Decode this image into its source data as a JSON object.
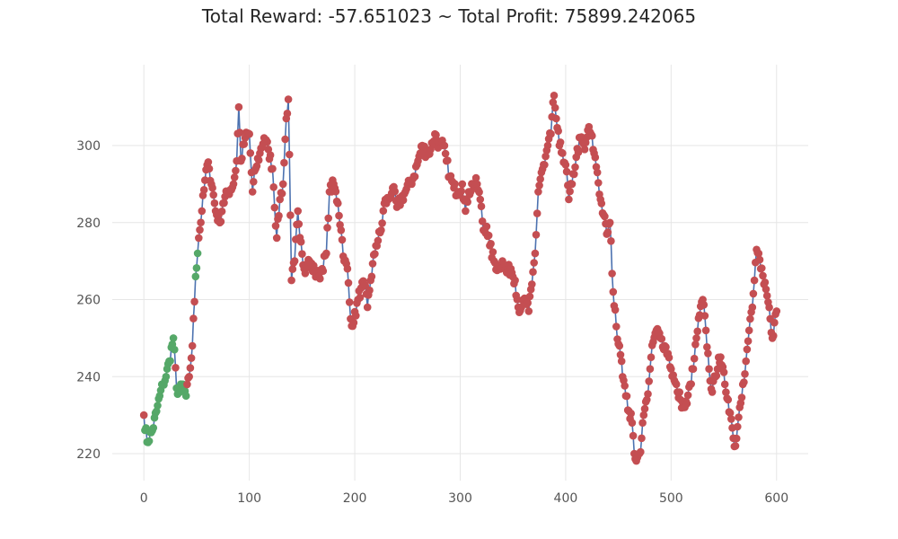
{
  "chart_data": {
    "type": "line",
    "title": "Total Reward: -57.651023 ~ Total Profit: 75899.242065",
    "xlabel": "",
    "ylabel": "",
    "xlim": [
      -30,
      630
    ],
    "ylim": [
      213,
      321
    ],
    "xticks": [
      0,
      100,
      200,
      300,
      400,
      500,
      600
    ],
    "yticks": [
      220,
      240,
      260,
      280,
      300
    ],
    "grid": true,
    "colors": {
      "line": "#4c72b0",
      "short": "#c44e52",
      "long": "#55a868",
      "grid": "#e6e6e6"
    },
    "key_points": [
      [
        0,
        230
      ],
      [
        3,
        223
      ],
      [
        8,
        226
      ],
      [
        12,
        231
      ],
      [
        15,
        235
      ],
      [
        18,
        238
      ],
      [
        21,
        240
      ],
      [
        24,
        244
      ],
      [
        28,
        250
      ],
      [
        31,
        237
      ],
      [
        34,
        236
      ],
      [
        37,
        238
      ],
      [
        40,
        235
      ],
      [
        43,
        240
      ],
      [
        46,
        248
      ],
      [
        49,
        266
      ],
      [
        52,
        276
      ],
      [
        55,
        283
      ],
      [
        58,
        291
      ],
      [
        60,
        295
      ],
      [
        62,
        294
      ],
      [
        65,
        289
      ],
      [
        68,
        283
      ],
      [
        72,
        280
      ],
      [
        75,
        285
      ],
      [
        80,
        288
      ],
      [
        85,
        290
      ],
      [
        88,
        296
      ],
      [
        90,
        310
      ],
      [
        92,
        296
      ],
      [
        96,
        302
      ],
      [
        100,
        303
      ],
      [
        103,
        288
      ],
      [
        106,
        294
      ],
      [
        110,
        298
      ],
      [
        114,
        302
      ],
      [
        118,
        299
      ],
      [
        122,
        294
      ],
      [
        126,
        276
      ],
      [
        129,
        286
      ],
      [
        132,
        290
      ],
      [
        135,
        307
      ],
      [
        137,
        312
      ],
      [
        140,
        265
      ],
      [
        143,
        270
      ],
      [
        146,
        283
      ],
      [
        149,
        275
      ],
      [
        152,
        268
      ],
      [
        157,
        270
      ],
      [
        162,
        267
      ],
      [
        166,
        266
      ],
      [
        169,
        268
      ],
      [
        173,
        272
      ],
      [
        176,
        288
      ],
      [
        180,
        290
      ],
      [
        184,
        285
      ],
      [
        187,
        278
      ],
      [
        190,
        270
      ],
      [
        193,
        268
      ],
      [
        196,
        255
      ],
      [
        199,
        254
      ],
      [
        203,
        260
      ],
      [
        206,
        263
      ],
      [
        209,
        264
      ],
      [
        212,
        258
      ],
      [
        215,
        265
      ],
      [
        220,
        274
      ],
      [
        225,
        278
      ],
      [
        228,
        285
      ],
      [
        232,
        286
      ],
      [
        236,
        289
      ],
      [
        240,
        284
      ],
      [
        244,
        286
      ],
      [
        248,
        288
      ],
      [
        252,
        290
      ],
      [
        256,
        292
      ],
      [
        260,
        296
      ],
      [
        264,
        300
      ],
      [
        268,
        298
      ],
      [
        272,
        299
      ],
      [
        276,
        303
      ],
      [
        280,
        300
      ],
      [
        284,
        300
      ],
      [
        287,
        296
      ],
      [
        290,
        292
      ],
      [
        294,
        289
      ],
      [
        298,
        288
      ],
      [
        302,
        290
      ],
      [
        305,
        283
      ],
      [
        308,
        288
      ],
      [
        312,
        290
      ],
      [
        316,
        290
      ],
      [
        319,
        286
      ],
      [
        322,
        278
      ],
      [
        325,
        279
      ],
      [
        328,
        274
      ],
      [
        332,
        270
      ],
      [
        336,
        268
      ],
      [
        340,
        270
      ],
      [
        344,
        267
      ],
      [
        348,
        268
      ],
      [
        352,
        265
      ],
      [
        355,
        258
      ],
      [
        358,
        258
      ],
      [
        362,
        260
      ],
      [
        365,
        257
      ],
      [
        368,
        264
      ],
      [
        371,
        272
      ],
      [
        374,
        288
      ],
      [
        377,
        293
      ],
      [
        380,
        295
      ],
      [
        383,
        300
      ],
      [
        386,
        303
      ],
      [
        389,
        313
      ],
      [
        391,
        307
      ],
      [
        394,
        300
      ],
      [
        397,
        298
      ],
      [
        400,
        295
      ],
      [
        403,
        286
      ],
      [
        406,
        290
      ],
      [
        410,
        297
      ],
      [
        414,
        302
      ],
      [
        418,
        299
      ],
      [
        421,
        304
      ],
      [
        424,
        303
      ],
      [
        427,
        298
      ],
      [
        430,
        293
      ],
      [
        433,
        286
      ],
      [
        436,
        282
      ],
      [
        439,
        277
      ],
      [
        442,
        280
      ],
      [
        445,
        262
      ],
      [
        448,
        253
      ],
      [
        451,
        248
      ],
      [
        453,
        244
      ],
      [
        455,
        239
      ],
      [
        457,
        235
      ],
      [
        460,
        231
      ],
      [
        463,
        228
      ],
      [
        465,
        220
      ],
      [
        468,
        219
      ],
      [
        470,
        220
      ],
      [
        472,
        224
      ],
      [
        474,
        230
      ],
      [
        477,
        234
      ],
      [
        480,
        242
      ],
      [
        483,
        249
      ],
      [
        486,
        252
      ],
      [
        490,
        250
      ],
      [
        494,
        248
      ],
      [
        497,
        246
      ],
      [
        500,
        242
      ],
      [
        503,
        239
      ],
      [
        506,
        236
      ],
      [
        509,
        234
      ],
      [
        512,
        232
      ],
      [
        515,
        233
      ],
      [
        518,
        238
      ],
      [
        521,
        242
      ],
      [
        524,
        250
      ],
      [
        527,
        256
      ],
      [
        530,
        260
      ],
      [
        533,
        252
      ],
      [
        536,
        242
      ],
      [
        539,
        236
      ],
      [
        542,
        240
      ],
      [
        545,
        245
      ],
      [
        548,
        243
      ],
      [
        551,
        238
      ],
      [
        554,
        234
      ],
      [
        557,
        229
      ],
      [
        559,
        224
      ],
      [
        561,
        222
      ],
      [
        563,
        227
      ],
      [
        565,
        232
      ],
      [
        568,
        238
      ],
      [
        571,
        244
      ],
      [
        574,
        252
      ],
      [
        577,
        258
      ],
      [
        579,
        265
      ],
      [
        581,
        273
      ],
      [
        583,
        272
      ],
      [
        585,
        268
      ],
      [
        588,
        264
      ],
      [
        591,
        261
      ],
      [
        594,
        255
      ],
      [
        596,
        250
      ],
      [
        598,
        254
      ],
      [
        600,
        257
      ]
    ],
    "signal_segments": [
      {
        "from": 0,
        "to": 0,
        "position": "short"
      },
      {
        "from": 1,
        "to": 29,
        "position": "long"
      },
      {
        "from": 30,
        "to": 30,
        "position": "short"
      },
      {
        "from": 31,
        "to": 40,
        "position": "long"
      },
      {
        "from": 41,
        "to": 48,
        "position": "short"
      },
      {
        "from": 49,
        "to": 51,
        "position": "long"
      },
      {
        "from": 52,
        "to": 600,
        "position": "short"
      }
    ]
  }
}
